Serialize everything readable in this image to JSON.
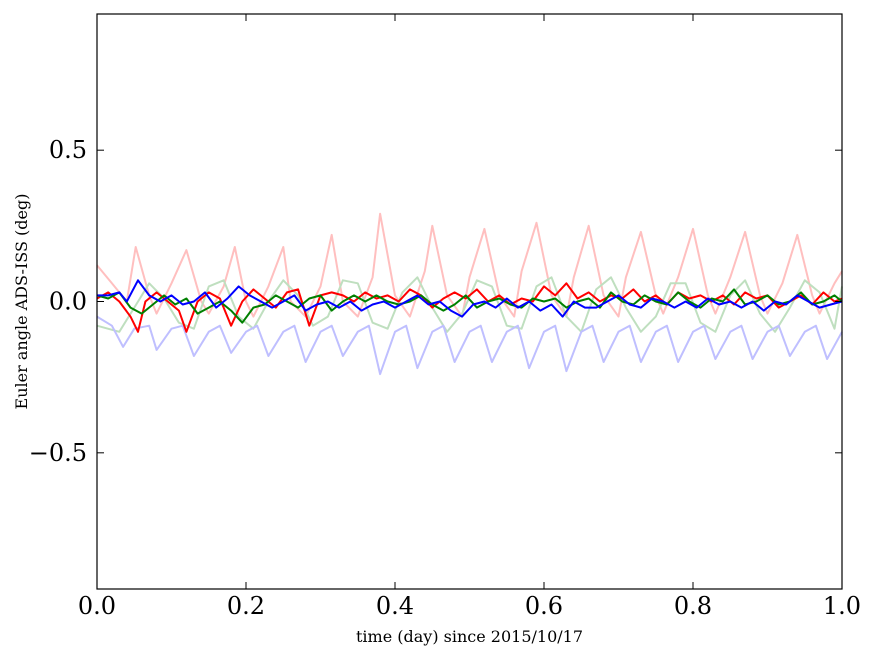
{
  "chart_data": {
    "type": "line",
    "title": "",
    "xlabel": "time (day) since 2015/10/17",
    "ylabel": "Euler angle ADS-ISS (deg)",
    "xlim": [
      0.0,
      1.0
    ],
    "ylim": [
      -0.95,
      0.95
    ],
    "grid": false,
    "x_ticks": [
      {
        "value": 0.0,
        "label": "0.0"
      },
      {
        "value": 0.2,
        "label": "0.2"
      },
      {
        "value": 0.4,
        "label": "0.4"
      },
      {
        "value": 0.6,
        "label": "0.6"
      },
      {
        "value": 0.8,
        "label": "0.8"
      },
      {
        "value": 1.0,
        "label": "1.0"
      }
    ],
    "y_ticks": [
      {
        "value": -0.5,
        "label": "−0.5"
      },
      {
        "value": 0.0,
        "label": "0.0"
      },
      {
        "value": 0.5,
        "label": "0.5"
      }
    ],
    "series": [
      {
        "color": "#ffbfbf",
        "x": [
          0.0,
          0.02,
          0.04,
          0.052,
          0.07,
          0.08,
          0.1,
          0.12,
          0.14,
          0.15,
          0.17,
          0.185,
          0.2,
          0.21,
          0.23,
          0.25,
          0.26,
          0.28,
          0.3,
          0.315,
          0.33,
          0.35,
          0.37,
          0.38,
          0.4,
          0.42,
          0.44,
          0.45,
          0.47,
          0.49,
          0.5,
          0.52,
          0.54,
          0.56,
          0.57,
          0.59,
          0.61,
          0.63,
          0.64,
          0.66,
          0.68,
          0.7,
          0.71,
          0.73,
          0.75,
          0.76,
          0.78,
          0.8,
          0.82,
          0.83,
          0.85,
          0.87,
          0.89,
          0.9,
          0.92,
          0.94,
          0.96,
          0.97,
          0.99,
          1.0
        ],
        "y": [
          0.12,
          0.06,
          0.0,
          0.18,
          0.02,
          -0.04,
          0.06,
          0.17,
          0.0,
          -0.04,
          0.05,
          0.18,
          0.0,
          -0.05,
          0.05,
          0.18,
          0.0,
          -0.05,
          0.05,
          0.22,
          0.0,
          -0.05,
          0.08,
          0.29,
          0.02,
          -0.05,
          0.1,
          0.25,
          0.02,
          -0.05,
          0.08,
          0.24,
          0.02,
          -0.05,
          0.1,
          0.26,
          0.02,
          -0.05,
          0.08,
          0.25,
          0.02,
          -0.05,
          0.08,
          0.23,
          0.02,
          -0.04,
          0.08,
          0.24,
          0.02,
          -0.04,
          0.08,
          0.23,
          0.02,
          -0.04,
          0.06,
          0.22,
          0.02,
          -0.04,
          0.06,
          0.1
        ]
      },
      {
        "color": "#bfdfbf",
        "x": [
          0.0,
          0.03,
          0.05,
          0.07,
          0.09,
          0.11,
          0.13,
          0.15,
          0.17,
          0.19,
          0.21,
          0.23,
          0.25,
          0.27,
          0.29,
          0.31,
          0.33,
          0.35,
          0.37,
          0.39,
          0.41,
          0.43,
          0.45,
          0.47,
          0.49,
          0.51,
          0.53,
          0.55,
          0.57,
          0.59,
          0.61,
          0.63,
          0.65,
          0.67,
          0.69,
          0.71,
          0.73,
          0.75,
          0.77,
          0.79,
          0.81,
          0.83,
          0.85,
          0.87,
          0.89,
          0.91,
          0.93,
          0.95,
          0.97,
          0.99,
          1.0
        ],
        "y": [
          -0.08,
          -0.1,
          -0.02,
          0.06,
          0.01,
          -0.07,
          -0.09,
          0.05,
          0.07,
          -0.05,
          -0.09,
          0.0,
          0.07,
          0.02,
          -0.08,
          -0.05,
          0.07,
          0.06,
          -0.07,
          -0.09,
          0.03,
          0.08,
          -0.02,
          -0.1,
          -0.04,
          0.07,
          0.05,
          -0.08,
          -0.09,
          0.05,
          0.08,
          -0.05,
          -0.1,
          0.04,
          0.08,
          -0.02,
          -0.1,
          -0.05,
          0.06,
          0.06,
          -0.07,
          -0.1,
          0.02,
          0.07,
          -0.04,
          -0.1,
          -0.02,
          0.07,
          0.03,
          -0.09,
          0.05
        ]
      },
      {
        "color": "#bfbfff",
        "x": [
          0.0,
          0.02,
          0.035,
          0.05,
          0.07,
          0.08,
          0.1,
          0.115,
          0.13,
          0.15,
          0.165,
          0.18,
          0.2,
          0.215,
          0.23,
          0.25,
          0.265,
          0.28,
          0.3,
          0.315,
          0.33,
          0.35,
          0.365,
          0.38,
          0.4,
          0.415,
          0.43,
          0.45,
          0.465,
          0.48,
          0.5,
          0.515,
          0.53,
          0.55,
          0.565,
          0.58,
          0.6,
          0.615,
          0.63,
          0.65,
          0.665,
          0.68,
          0.7,
          0.715,
          0.73,
          0.75,
          0.765,
          0.78,
          0.8,
          0.815,
          0.83,
          0.85,
          0.865,
          0.88,
          0.9,
          0.915,
          0.93,
          0.95,
          0.965,
          0.98,
          1.0
        ],
        "y": [
          -0.05,
          -0.08,
          -0.15,
          -0.09,
          -0.08,
          -0.16,
          -0.09,
          -0.08,
          -0.18,
          -0.1,
          -0.08,
          -0.17,
          -0.1,
          -0.08,
          -0.18,
          -0.1,
          -0.08,
          -0.2,
          -0.1,
          -0.08,
          -0.18,
          -0.1,
          -0.08,
          -0.24,
          -0.1,
          -0.08,
          -0.22,
          -0.1,
          -0.08,
          -0.2,
          -0.1,
          -0.08,
          -0.2,
          -0.1,
          -0.08,
          -0.22,
          -0.1,
          -0.08,
          -0.23,
          -0.1,
          -0.08,
          -0.2,
          -0.1,
          -0.08,
          -0.2,
          -0.1,
          -0.08,
          -0.2,
          -0.1,
          -0.08,
          -0.19,
          -0.1,
          -0.08,
          -0.19,
          -0.1,
          -0.08,
          -0.18,
          -0.1,
          -0.08,
          -0.19,
          -0.1
        ]
      },
      {
        "color": "#ff0000",
        "x": [
          0.0,
          0.015,
          0.03,
          0.045,
          0.055,
          0.065,
          0.08,
          0.095,
          0.11,
          0.12,
          0.135,
          0.15,
          0.165,
          0.18,
          0.195,
          0.21,
          0.225,
          0.24,
          0.255,
          0.27,
          0.285,
          0.3,
          0.315,
          0.33,
          0.345,
          0.36,
          0.375,
          0.39,
          0.405,
          0.42,
          0.435,
          0.45,
          0.465,
          0.48,
          0.495,
          0.51,
          0.525,
          0.54,
          0.555,
          0.57,
          0.585,
          0.6,
          0.615,
          0.63,
          0.645,
          0.66,
          0.675,
          0.69,
          0.705,
          0.72,
          0.735,
          0.75,
          0.765,
          0.78,
          0.795,
          0.81,
          0.825,
          0.84,
          0.855,
          0.87,
          0.885,
          0.9,
          0.915,
          0.93,
          0.945,
          0.96,
          0.975,
          0.99,
          1.0
        ],
        "y": [
          0.01,
          0.03,
          0.0,
          -0.05,
          -0.1,
          0.0,
          0.03,
          0.0,
          -0.03,
          -0.1,
          0.0,
          0.03,
          0.01,
          -0.08,
          0.0,
          0.04,
          0.01,
          -0.02,
          0.03,
          0.04,
          -0.08,
          0.02,
          0.03,
          0.02,
          0.0,
          0.03,
          0.01,
          0.02,
          0.0,
          0.04,
          0.02,
          -0.02,
          0.01,
          0.03,
          0.01,
          0.04,
          0.0,
          0.02,
          -0.01,
          0.01,
          0.0,
          0.05,
          0.02,
          0.06,
          0.01,
          0.03,
          0.0,
          0.02,
          0.01,
          0.04,
          0.0,
          0.02,
          -0.01,
          0.03,
          0.01,
          0.02,
          0.0,
          0.02,
          -0.01,
          0.03,
          0.01,
          0.02,
          -0.02,
          0.0,
          0.02,
          -0.01,
          0.03,
          0.0,
          0.01
        ]
      },
      {
        "color": "#008000",
        "x": [
          0.0,
          0.015,
          0.03,
          0.045,
          0.06,
          0.075,
          0.09,
          0.105,
          0.12,
          0.135,
          0.15,
          0.165,
          0.18,
          0.195,
          0.21,
          0.225,
          0.24,
          0.255,
          0.27,
          0.285,
          0.3,
          0.315,
          0.33,
          0.345,
          0.36,
          0.375,
          0.39,
          0.405,
          0.42,
          0.435,
          0.45,
          0.465,
          0.48,
          0.495,
          0.51,
          0.525,
          0.54,
          0.555,
          0.57,
          0.585,
          0.6,
          0.615,
          0.63,
          0.645,
          0.66,
          0.675,
          0.69,
          0.705,
          0.72,
          0.735,
          0.75,
          0.765,
          0.78,
          0.795,
          0.81,
          0.825,
          0.84,
          0.855,
          0.87,
          0.885,
          0.9,
          0.915,
          0.93,
          0.945,
          0.96,
          0.975,
          0.99,
          1.0
        ],
        "y": [
          0.02,
          0.01,
          0.03,
          -0.02,
          -0.04,
          -0.01,
          0.02,
          -0.01,
          0.01,
          -0.04,
          -0.02,
          0.0,
          -0.03,
          -0.07,
          -0.02,
          -0.01,
          0.02,
          0.0,
          -0.02,
          0.01,
          0.02,
          -0.03,
          0.0,
          0.02,
          0.0,
          0.02,
          0.0,
          -0.01,
          0.0,
          0.02,
          -0.01,
          -0.03,
          -0.01,
          0.02,
          -0.02,
          0.0,
          0.01,
          -0.01,
          -0.02,
          0.01,
          0.0,
          0.01,
          -0.02,
          0.0,
          0.01,
          -0.02,
          0.03,
          0.0,
          -0.01,
          0.02,
          0.0,
          -0.01,
          0.03,
          0.0,
          -0.02,
          0.01,
          0.0,
          0.04,
          -0.01,
          0.0,
          0.02,
          -0.01,
          0.0,
          0.03,
          -0.01,
          0.0,
          0.02,
          0.0
        ]
      },
      {
        "color": "#0000ff",
        "x": [
          0.0,
          0.015,
          0.03,
          0.04,
          0.055,
          0.07,
          0.085,
          0.1,
          0.115,
          0.13,
          0.145,
          0.16,
          0.175,
          0.19,
          0.205,
          0.22,
          0.235,
          0.25,
          0.265,
          0.28,
          0.295,
          0.31,
          0.325,
          0.34,
          0.355,
          0.37,
          0.385,
          0.4,
          0.415,
          0.43,
          0.445,
          0.46,
          0.475,
          0.49,
          0.505,
          0.52,
          0.535,
          0.55,
          0.565,
          0.58,
          0.595,
          0.61,
          0.625,
          0.64,
          0.655,
          0.67,
          0.685,
          0.7,
          0.715,
          0.73,
          0.745,
          0.76,
          0.775,
          0.79,
          0.805,
          0.82,
          0.835,
          0.85,
          0.865,
          0.88,
          0.895,
          0.91,
          0.925,
          0.94,
          0.955,
          0.97,
          0.985,
          1.0
        ],
        "y": [
          0.02,
          0.02,
          0.03,
          0.0,
          0.07,
          0.02,
          0.0,
          0.02,
          -0.01,
          0.0,
          0.03,
          -0.02,
          0.01,
          0.05,
          0.02,
          0.0,
          -0.02,
          0.0,
          0.02,
          -0.03,
          -0.01,
          0.0,
          -0.02,
          0.0,
          -0.03,
          -0.01,
          0.0,
          -0.02,
          0.0,
          0.02,
          -0.01,
          0.0,
          -0.03,
          -0.05,
          -0.01,
          0.0,
          -0.02,
          0.01,
          -0.02,
          0.0,
          -0.03,
          -0.01,
          -0.05,
          0.0,
          -0.02,
          -0.02,
          0.0,
          0.02,
          -0.01,
          -0.02,
          0.01,
          0.0,
          -0.02,
          0.0,
          -0.02,
          0.01,
          -0.01,
          0.0,
          -0.02,
          0.0,
          -0.03,
          0.0,
          -0.01,
          0.02,
          0.0,
          -0.02,
          -0.01,
          0.0
        ]
      }
    ]
  }
}
